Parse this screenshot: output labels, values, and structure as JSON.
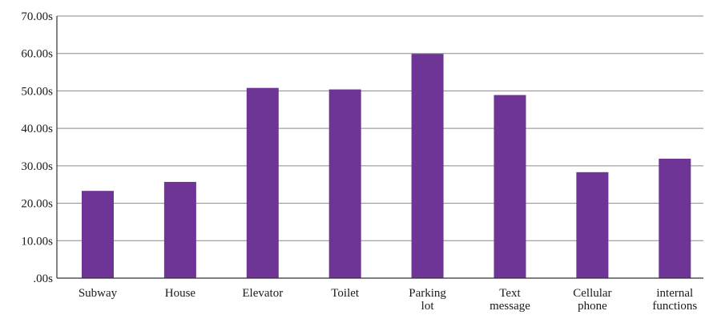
{
  "chart_data": {
    "type": "bar",
    "title": "",
    "xlabel": "",
    "ylabel": "",
    "categories": [
      [
        "Subway"
      ],
      [
        "House"
      ],
      [
        "Elevator"
      ],
      [
        "Toilet"
      ],
      [
        "Parking",
        "lot"
      ],
      [
        "Text",
        "message"
      ],
      [
        "Cellular",
        "phone"
      ],
      [
        "internal",
        "functions"
      ]
    ],
    "values": [
      23.3,
      25.7,
      50.8,
      50.4,
      59.9,
      48.9,
      28.3,
      31.9
    ],
    "ylim": [
      0,
      70
    ],
    "y_ticks": [
      0,
      10,
      20,
      30,
      40,
      50,
      60,
      70
    ],
    "y_tick_labels": [
      ".00s",
      "10.00s",
      "20.00s",
      "30.00s",
      "40.00s",
      "50.00s",
      "60.00s",
      "70.00s"
    ],
    "grid": true,
    "legend": "none",
    "bar_color": "#6e3496",
    "grid_color": "#8a8a8a"
  }
}
